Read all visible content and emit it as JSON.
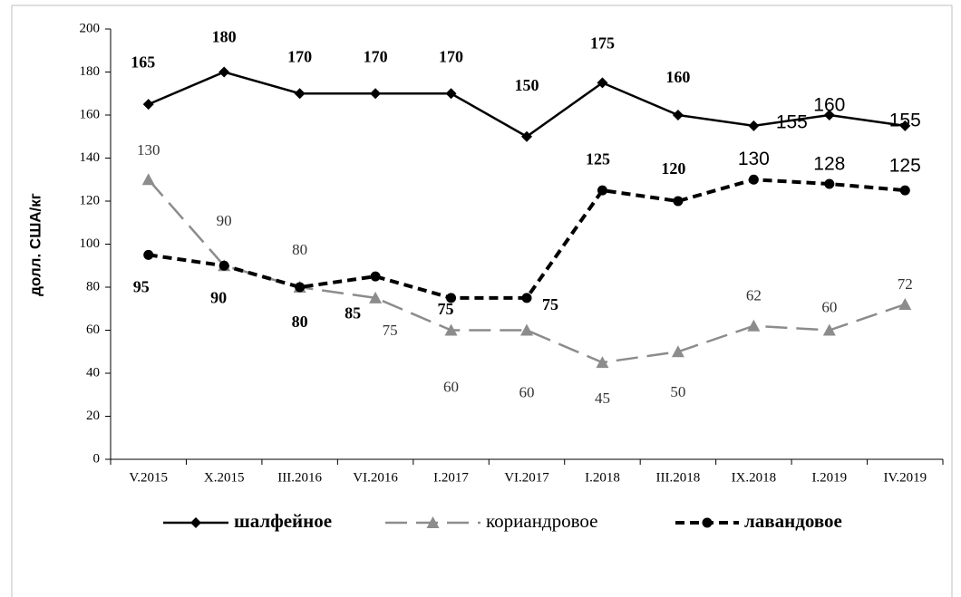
{
  "chart_data": {
    "type": "line",
    "ylabel": "долл. США/кг",
    "categories": [
      "V.2015",
      "X.2015",
      "III.2016",
      "VI.2016",
      "I.2017",
      "VI.2017",
      "I.2018",
      "III.2018",
      "IX.2018",
      "I.2019",
      "IV.2019"
    ],
    "series": [
      {
        "name": "шалфейное",
        "color": "#000000",
        "values": [
          165,
          180,
          170,
          170,
          170,
          150,
          175,
          160,
          155,
          160,
          155
        ]
      },
      {
        "name": "кориандровое",
        "color": "#8c8c8c",
        "values": [
          130,
          90,
          80,
          75,
          60,
          60,
          45,
          50,
          62,
          60,
          72
        ]
      },
      {
        "name": "лавандовое",
        "color": "#000000",
        "values": [
          95,
          90,
          80,
          85,
          75,
          75,
          125,
          120,
          130,
          128,
          125
        ]
      }
    ],
    "ylim": [
      0,
      200
    ],
    "yticks": [
      0,
      20,
      40,
      60,
      80,
      100,
      120,
      140,
      160,
      180,
      200
    ],
    "legend": "bottom"
  }
}
